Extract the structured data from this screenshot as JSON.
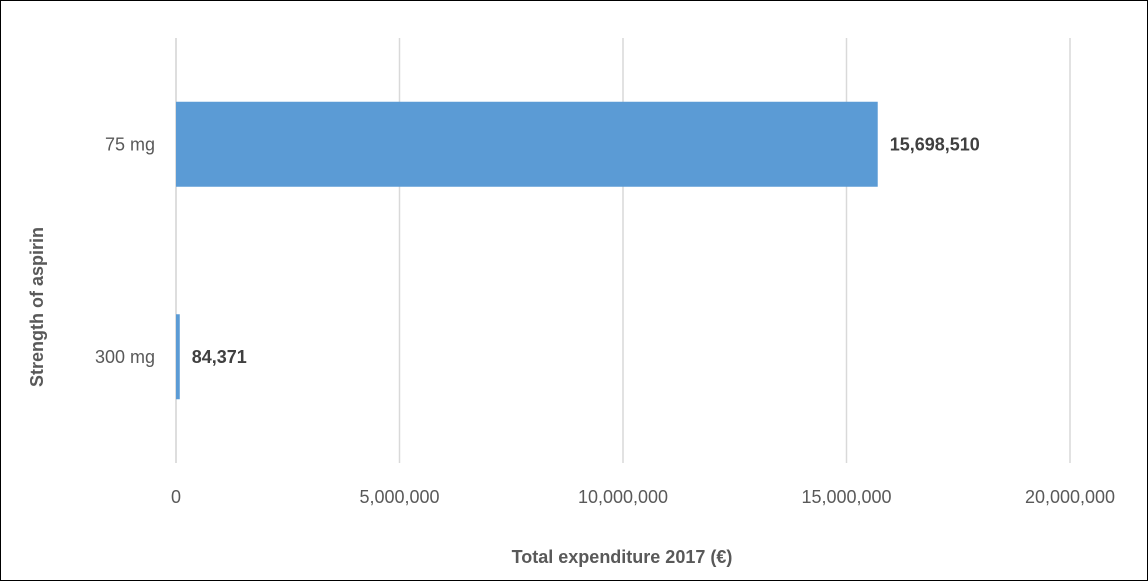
{
  "chart_data": {
    "type": "bar",
    "orientation": "horizontal",
    "categories": [
      "75 mg",
      "300 mg"
    ],
    "series": [
      {
        "values": [
          15698510,
          84371
        ],
        "data_labels": [
          "15,698,510",
          "84,371"
        ]
      }
    ],
    "xlabel": "Total expenditure 2017 (€)",
    "ylabel": "Strength of aspirin",
    "xlim": [
      0,
      20000000
    ],
    "x_ticks": [
      0,
      5000000,
      10000000,
      15000000,
      20000000
    ],
    "x_tick_labels": [
      "0",
      "5,000,000",
      "10,000,000",
      "15,000,000",
      "20,000,000"
    ],
    "grid": "vertical",
    "legend": "none",
    "bar_color": "#5B9BD5",
    "grid_color": "#D9D9D9"
  }
}
